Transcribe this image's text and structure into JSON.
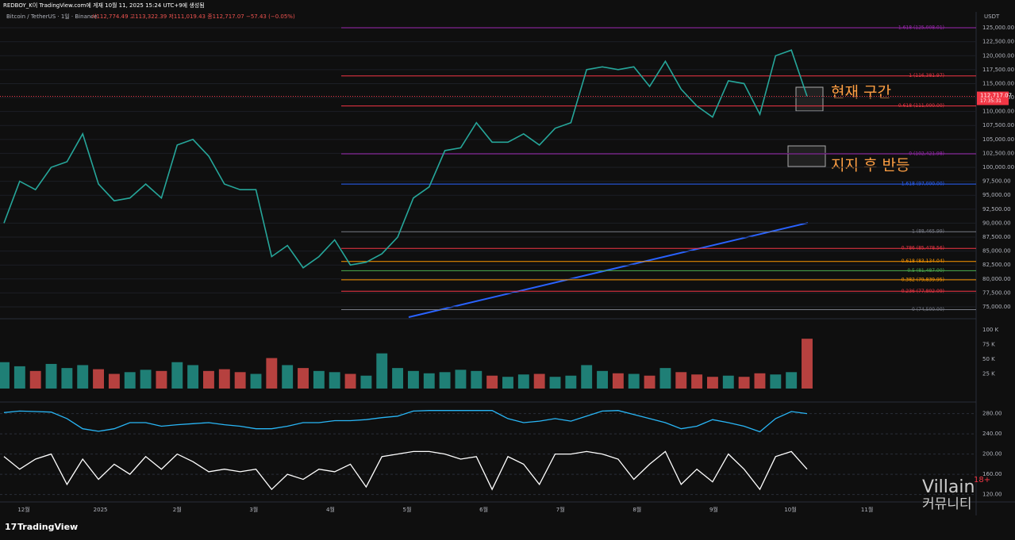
{
  "header": {
    "publisher": "REDBOY_K이 TradingView.com에 게재 10월 11, 2025 15:24 UTC+9에 생성됨",
    "symbol": "Bitcoin / TetherUS · 1일 · Binance",
    "ohlc": "시112,774.49 고113,322.39 저111,019.43 종112,717.07 −57.43 (−0.05%)"
  },
  "chart_data": {
    "type": "line",
    "currency": "USDT",
    "ylim": [
      73150,
      127850
    ],
    "yticks": [
      {
        "value": 75000,
        "label": "75,000.00"
      },
      {
        "value": 77500,
        "label": "77,500.00"
      },
      {
        "value": 80000,
        "label": "80,000.00"
      },
      {
        "value": 82500,
        "label": "82,500.00"
      },
      {
        "value": 85000,
        "label": "85,000.00"
      },
      {
        "value": 87500,
        "label": "87,500.00"
      },
      {
        "value": 90000,
        "label": "90,000.00"
      },
      {
        "value": 92500,
        "label": "92,500.00"
      },
      {
        "value": 95000,
        "label": "95,000.00"
      },
      {
        "value": 97500,
        "label": "97,500.00"
      },
      {
        "value": 100000,
        "label": "100,000.00"
      },
      {
        "value": 102500,
        "label": "102,500.00"
      },
      {
        "value": 105000,
        "label": "105,000.00"
      },
      {
        "value": 107500,
        "label": "107,500.00"
      },
      {
        "value": 110000,
        "label": "110,000.00"
      },
      {
        "value": 112500,
        "label": "112,500.00"
      },
      {
        "value": 115000,
        "label": "115,000.00"
      },
      {
        "value": 117500,
        "label": "117,500.00"
      },
      {
        "value": 120000,
        "label": "120,000.00"
      },
      {
        "value": 122500,
        "label": "122,500.00"
      },
      {
        "value": 125000,
        "label": "125,000.00"
      }
    ],
    "x_labels": [
      "12월",
      "2025",
      "2월",
      "3월",
      "4월",
      "5월",
      "6월",
      "7월",
      "8월",
      "9월",
      "10월",
      "11월"
    ],
    "series": [
      {
        "name": "BTCUSDT",
        "color": "#26a69a",
        "values": [
          90000,
          97500,
          96000,
          100000,
          101000,
          106000,
          97000,
          94000,
          94500,
          97000,
          94500,
          104000,
          105000,
          102000,
          97000,
          96000,
          96000,
          84000,
          86000,
          82000,
          84000,
          87000,
          82500,
          83000,
          84500,
          87500,
          94500,
          96500,
          103000,
          103500,
          108000,
          104500,
          104500,
          106000,
          104000,
          107000,
          108000,
          117500,
          118000,
          117500,
          118000,
          114500,
          119000,
          114000,
          111000,
          109000,
          115500,
          115000,
          109500,
          120000,
          121000,
          112717.07
        ]
      }
    ],
    "last_price": {
      "value": 112717.07,
      "label": "112,717.07",
      "countdown": "17:35:31",
      "color": "#f23645"
    },
    "fib_levels": [
      {
        "value": 125008.01,
        "label": "1.618 (125,008.01)",
        "color": "#9c27b0"
      },
      {
        "value": 116381.97,
        "label": "1 (116,381.97)",
        "color": "#f23645"
      },
      {
        "value": 111000,
        "label": "0.618 (111,000.00)",
        "color": "#f23645"
      },
      {
        "value": 102421.98,
        "label": "0 (102,421.98)",
        "color": "#9c27b0"
      },
      {
        "value": 97000,
        "label": "1.618 (97,000.00)",
        "color": "#2962ff"
      },
      {
        "value": 88465.99,
        "label": "1 (88,465.99)",
        "color": "#787b86"
      },
      {
        "value": 85478.56,
        "label": "0.786 (85,478.56)",
        "color": "#f23645"
      },
      {
        "value": 83134.04,
        "label": "0.618 (83,134.04)",
        "color": "#ff9800"
      },
      {
        "value": 81487,
        "label": "0.5 (81,487.00)",
        "color": "#4caf50"
      },
      {
        "value": 79839.95,
        "label": "0.382 (79,839.95)",
        "color": "#ff9800"
      },
      {
        "value": 77802.09,
        "label": "0.236 (77,802.09)",
        "color": "#f23645"
      },
      {
        "value": 74500,
        "label": "0 (74,500.00)",
        "color": "#787b86"
      }
    ],
    "annotations": [
      "현재 구간",
      "지지 후 반등"
    ],
    "volume": {
      "ylim": [
        0,
        115000
      ],
      "yticks": [
        {
          "value": 25000,
          "label": "25 K"
        },
        {
          "value": 50000,
          "label": "50 K"
        },
        {
          "value": 75000,
          "label": "75 K"
        },
        {
          "value": 100000,
          "label": "100 K"
        }
      ],
      "values": [
        45000,
        38000,
        30000,
        42000,
        35000,
        40000,
        33000,
        25000,
        28000,
        32000,
        30000,
        45000,
        40000,
        30000,
        33000,
        28000,
        25000,
        52000,
        40000,
        35000,
        30000,
        28000,
        25000,
        22000,
        60000,
        35000,
        30000,
        26000,
        28000,
        32000,
        30000,
        22000,
        20000,
        24000,
        25000,
        20000,
        22000,
        40000,
        30000,
        26000,
        25000,
        22000,
        35000,
        28000,
        24000,
        20000,
        22000,
        20000,
        26000,
        24000,
        28000,
        85000
      ],
      "colors": [
        "#26a69a",
        "#ef5350"
      ]
    },
    "oscillator": {
      "ylim": [
        110,
        295
      ],
      "yticks": [
        {
          "value": 120,
          "label": "120.00"
        },
        {
          "value": 160,
          "label": "160.00"
        },
        {
          "value": 200,
          "label": "200.00"
        },
        {
          "value": 240,
          "label": "240.00"
        },
        {
          "value": 280,
          "label": "280.00"
        }
      ],
      "series": [
        {
          "name": "osc1",
          "color": "#29b6f6",
          "values": [
            282,
            285,
            284,
            283,
            270,
            250,
            245,
            250,
            262,
            262,
            255,
            258,
            260,
            262,
            258,
            255,
            250,
            250,
            255,
            262,
            262,
            266,
            266,
            268,
            272,
            275,
            285,
            286,
            286,
            286,
            286,
            286,
            270,
            262,
            265,
            270,
            265,
            275,
            285,
            286,
            278,
            270,
            262,
            250,
            255,
            268,
            262,
            255,
            244,
            270,
            284,
            280
          ]
        },
        {
          "name": "osc2",
          "color": "#ffffff",
          "values": [
            195,
            170,
            190,
            200,
            140,
            190,
            150,
            180,
            160,
            195,
            170,
            200,
            185,
            165,
            170,
            165,
            170,
            130,
            160,
            150,
            170,
            165,
            180,
            135,
            195,
            200,
            205,
            205,
            200,
            190,
            195,
            130,
            195,
            180,
            140,
            200,
            200,
            205,
            200,
            190,
            150,
            180,
            205,
            140,
            170,
            145,
            200,
            170,
            130,
            195,
            205,
            170
          ]
        }
      ]
    }
  }
}
